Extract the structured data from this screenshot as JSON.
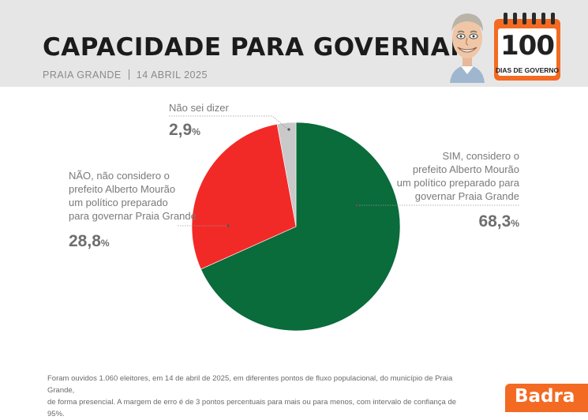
{
  "header": {
    "title": "CAPACIDADE PARA GOVERNAR",
    "location": "PRAIA GRANDE",
    "date": "14 ABRIL 2025",
    "calendar_number": "100",
    "calendar_text": "DIAS DE GOVERNO"
  },
  "chart_data": {
    "type": "pie",
    "title": "CAPACIDADE PARA GOVERNAR",
    "slices": [
      {
        "label": "SIM, considero o prefeito Alberto Mourão um político preparado para governar Praia Grande",
        "value": 68.3,
        "color": "#0a6b3b"
      },
      {
        "label": "NÃO, não considero o prefeito Alberto Mourão um político preparado para governar Praia Grande",
        "value": 28.8,
        "color": "#f22a27"
      },
      {
        "label": "Não sei dizer",
        "value": 2.9,
        "color": "#c9c9c9"
      }
    ],
    "unit": "%"
  },
  "labels": {
    "sim_lines": [
      "SIM, considero o",
      "prefeito Alberto Mourão",
      "um político preparado para",
      "governar Praia Grande"
    ],
    "sim_value": "68,3",
    "nao_lines": [
      "NÃO, não considero o",
      "prefeito Alberto Mourão",
      "um político preparado",
      "para governar Praia Grande"
    ],
    "nao_value": "28,8",
    "nsd_label": "Não sei dizer",
    "nsd_value": "2,9",
    "unit": "%"
  },
  "footer": {
    "line1": "Foram ouvidos 1.060 eleitores, em 14 de abril de 2025, em diferentes pontos de fluxo populacional, do município de Praia Grande,",
    "line2": "de forma presencial. A margem de erro é de 3 pontos percentuais para mais ou para menos, com intervalo de confiança de 95%."
  },
  "brand": "Badra",
  "colors": {
    "accent": "#f36a22",
    "sim": "#0a6b3b",
    "nao": "#f22a27",
    "nsd": "#c9c9c9"
  }
}
